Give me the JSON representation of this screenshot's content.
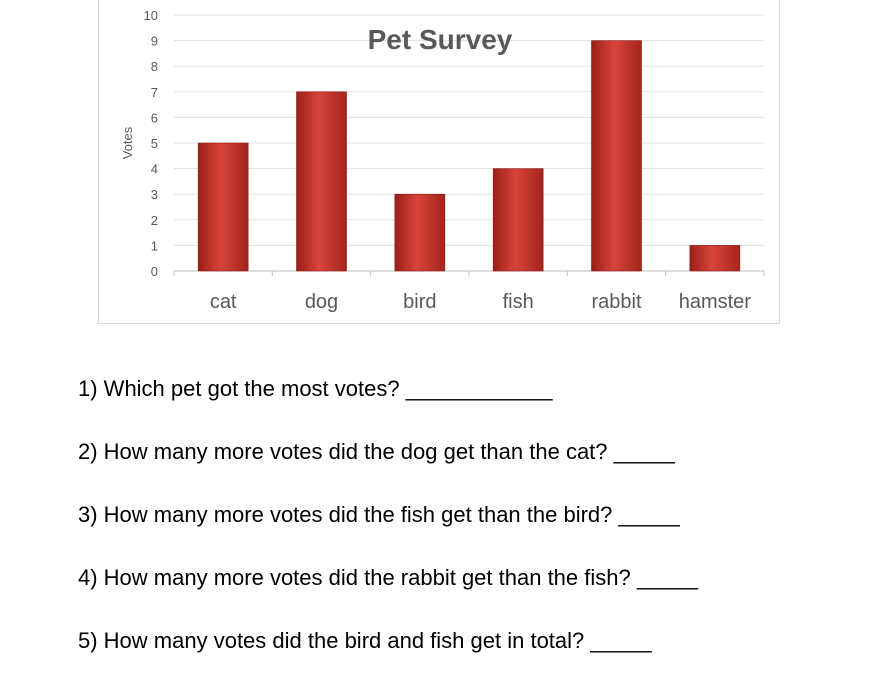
{
  "chart_data": {
    "type": "bar",
    "title": "Pet Survey",
    "xlabel": "",
    "ylabel": "Votes",
    "categories": [
      "cat",
      "dog",
      "bird",
      "fish",
      "rabbit",
      "hamster"
    ],
    "values": [
      5,
      7,
      3,
      4,
      9,
      1
    ],
    "ylim": [
      0,
      10
    ],
    "yticks": [
      0,
      1,
      2,
      3,
      4,
      5,
      6,
      7,
      8,
      9,
      10
    ],
    "grid": true,
    "bar_color": "#c0392b",
    "bar_color_dark": "#8e1b14",
    "bar_color_light": "#e0524a"
  },
  "worksheet": {
    "questions": [
      "1) Which pet got the most votes? ____________",
      "2) How many more votes did the dog get than the cat? _____",
      "3) How many more votes did the fish get than the bird? _____",
      "4) How many more votes did the rabbit get than the fish? _____",
      "5) How many votes did the bird and fish get in total? _____"
    ]
  }
}
